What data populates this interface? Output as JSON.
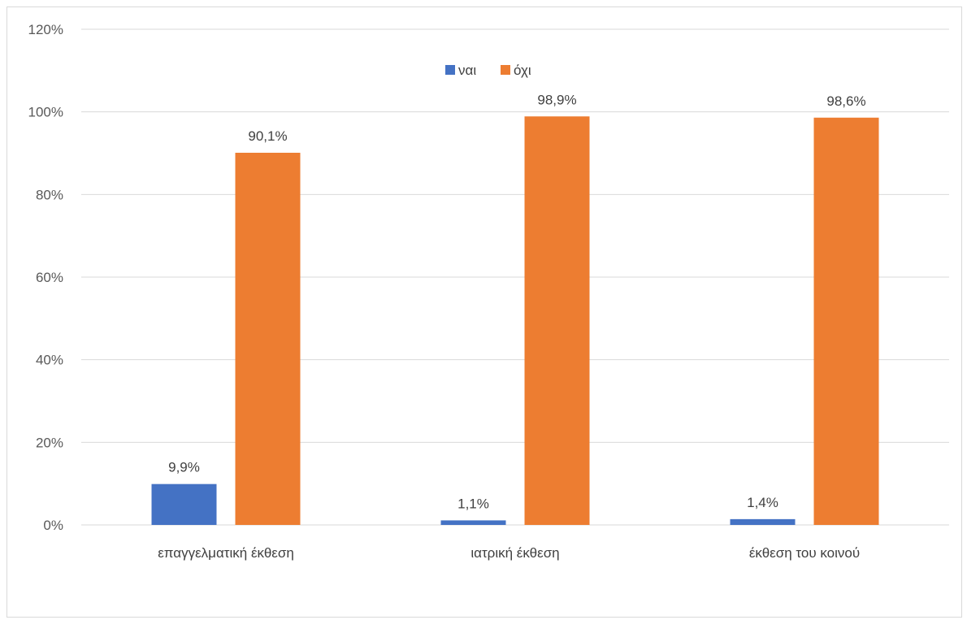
{
  "chart_data": {
    "type": "bar",
    "categories": [
      "επαγγελματική έκθεση",
      "ιατρική έκθεση",
      "έκθεση του κοινού"
    ],
    "series": [
      {
        "name": "ναι",
        "values": [
          9.9,
          1.1,
          1.4
        ],
        "labels": [
          "9,9%",
          "1,1%",
          "1,4%"
        ],
        "color": "#4472c4"
      },
      {
        "name": "όχι",
        "values": [
          90.1,
          98.9,
          98.6
        ],
        "labels": [
          "90,1%",
          "98,9%",
          "98,6%"
        ],
        "color": "#ed7d31"
      }
    ],
    "y_ticks": [
      "0%",
      "20%",
      "40%",
      "60%",
      "80%",
      "100%",
      "120%"
    ],
    "ylim": [
      0,
      120
    ],
    "y_unit": "%",
    "grid": true,
    "legend_position": "top-center"
  }
}
